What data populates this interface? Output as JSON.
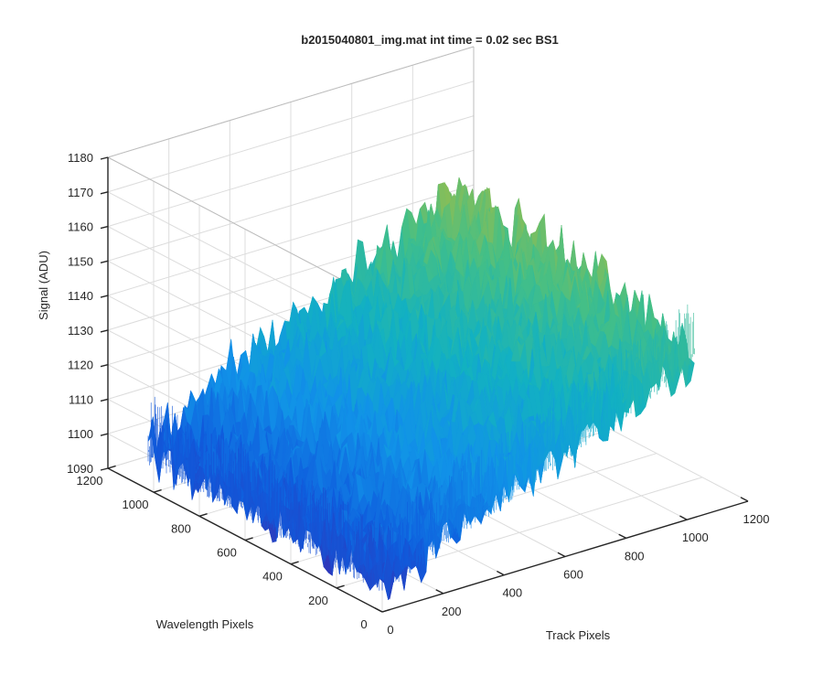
{
  "chart_data": {
    "type": "surface3d",
    "title": "b2015040801_img.mat int time = 0.02 sec   BS1",
    "xlabel": "Track Pixels",
    "ylabel": "Wavelength Pixels",
    "zlabel": "Signal (ADU)",
    "x_ticks": [
      "0",
      "200",
      "400",
      "600",
      "800",
      "1000",
      "1200"
    ],
    "y_ticks": [
      "0",
      "200",
      "400",
      "600",
      "800",
      "1000",
      "1200"
    ],
    "z_ticks": [
      "1090",
      "1100",
      "1110",
      "1120",
      "1130",
      "1140",
      "1150",
      "1160",
      "1170",
      "1180"
    ],
    "xlim": [
      0,
      1200
    ],
    "ylim": [
      0,
      1200
    ],
    "zlim": [
      1090,
      1180
    ],
    "surface": {
      "x_extent": [
        0,
        1024
      ],
      "y_extent": [
        0,
        1024
      ],
      "mean_signal_corners": {
        "x0_y0": 1100,
        "x1024_y0": 1138,
        "x0_y1024": 1102,
        "x1024_y1024": 1150
      },
      "noise_amplitude": 12,
      "colormap": [
        "#3e26a8",
        "#0f5cdd",
        "#1192e8",
        "#12b1c2",
        "#43bf87",
        "#9bbd4a",
        "#eab82e",
        "#f9d424"
      ]
    },
    "grid": true,
    "colors": {
      "axis": "#262626",
      "grid": "#dcdcdc",
      "background": "#ffffff"
    }
  }
}
